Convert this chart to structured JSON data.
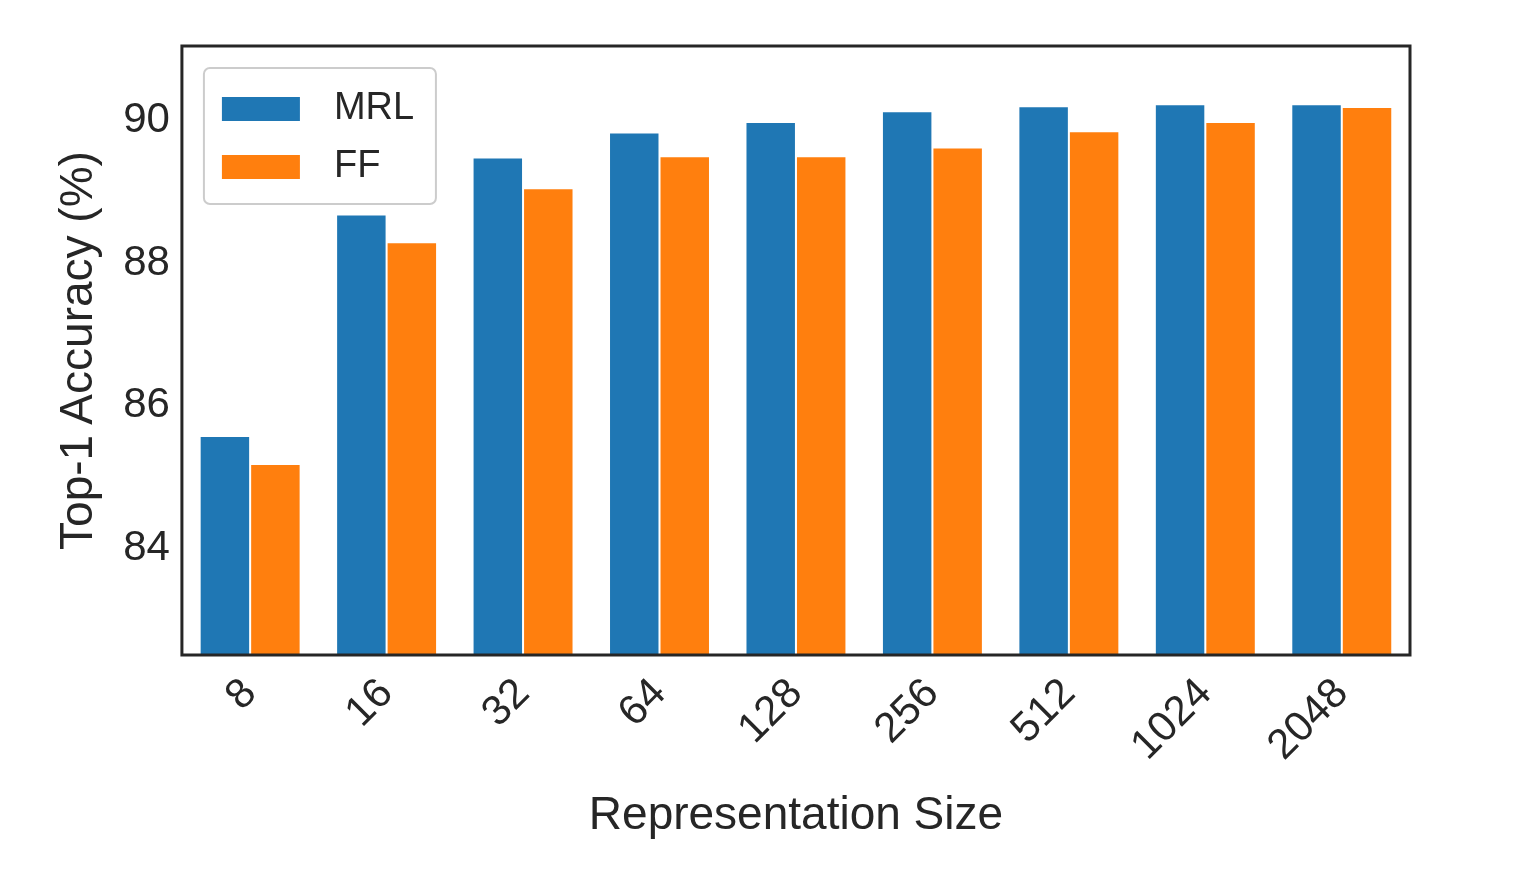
{
  "chart_data": {
    "type": "bar",
    "xlabel": "Representation Size",
    "ylabel": "Top-1 Accuracy (%)",
    "categories": [
      "8",
      "16",
      "32",
      "64",
      "128",
      "256",
      "512",
      "1024",
      "2048"
    ],
    "series": [
      {
        "name": "MRL",
        "color": "#1f77b4",
        "values": [
          85.56,
          88.67,
          89.47,
          89.82,
          89.97,
          90.12,
          90.19,
          90.22,
          90.22
        ]
      },
      {
        "name": "FF",
        "color": "#ff7f0e",
        "values": [
          85.17,
          88.28,
          89.04,
          89.49,
          89.49,
          89.61,
          89.84,
          89.97,
          90.18
        ]
      }
    ],
    "ylim": [
      82.5,
      91.05
    ],
    "yticks": [
      84,
      86,
      88,
      90
    ],
    "grid": false,
    "legend": "top left"
  }
}
